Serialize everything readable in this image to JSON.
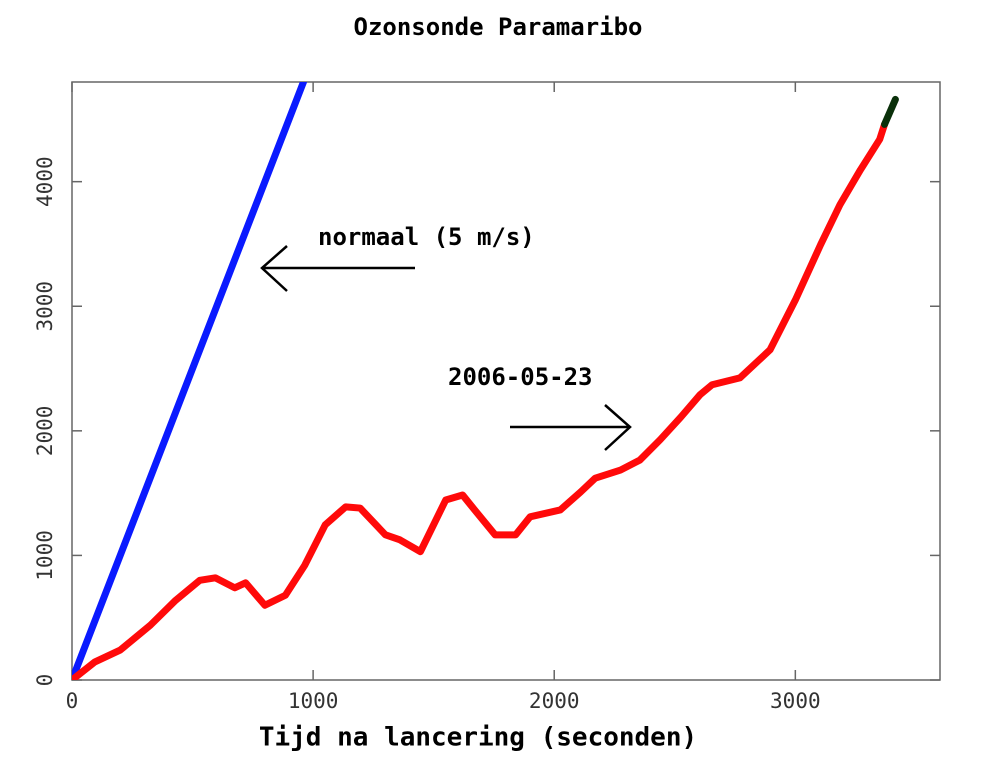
{
  "chart_data": {
    "type": "line",
    "title": "Ozonsonde Paramaribo",
    "xlabel": "Tijd na lancering (seconden)",
    "annotations": [
      "normaal (5 m/s)",
      "2006-05-23"
    ],
    "xlim": [
      0,
      3600
    ],
    "xticks": [
      0,
      1000,
      2000,
      3000
    ],
    "ylim": [
      0,
      4800
    ],
    "yticks": [
      0,
      1000,
      2000,
      3000,
      4000
    ],
    "series": [
      {
        "color": "#0a1aff",
        "x": [
          0,
          960
        ],
        "values": [
          0,
          4800
        ]
      },
      {
        "color": "#ff0a0a",
        "x": [
          0,
          95,
          200,
          325,
          430,
          530,
          595,
          675,
          720,
          800,
          885,
          965,
          1050,
          1135,
          1195,
          1300,
          1360,
          1445,
          1550,
          1620,
          1670,
          1755,
          1840,
          1900,
          2025,
          2110,
          2170,
          2275,
          2355,
          2440,
          2525,
          2605,
          2655,
          2770,
          2895,
          3000,
          3105,
          3185,
          3270,
          3350,
          3370
        ],
        "values": [
          0,
          145,
          240,
          440,
          640,
          800,
          820,
          740,
          780,
          600,
          680,
          920,
          1245,
          1390,
          1380,
          1165,
          1125,
          1030,
          1445,
          1485,
          1365,
          1165,
          1165,
          1310,
          1365,
          1510,
          1620,
          1685,
          1765,
          1930,
          2110,
          2290,
          2370,
          2425,
          2650,
          3050,
          3495,
          3815,
          4095,
          4340,
          4460
        ]
      },
      {
        "color": "#0a300a",
        "x": [
          3370,
          3415
        ],
        "values": [
          4460,
          4660
        ]
      }
    ]
  }
}
